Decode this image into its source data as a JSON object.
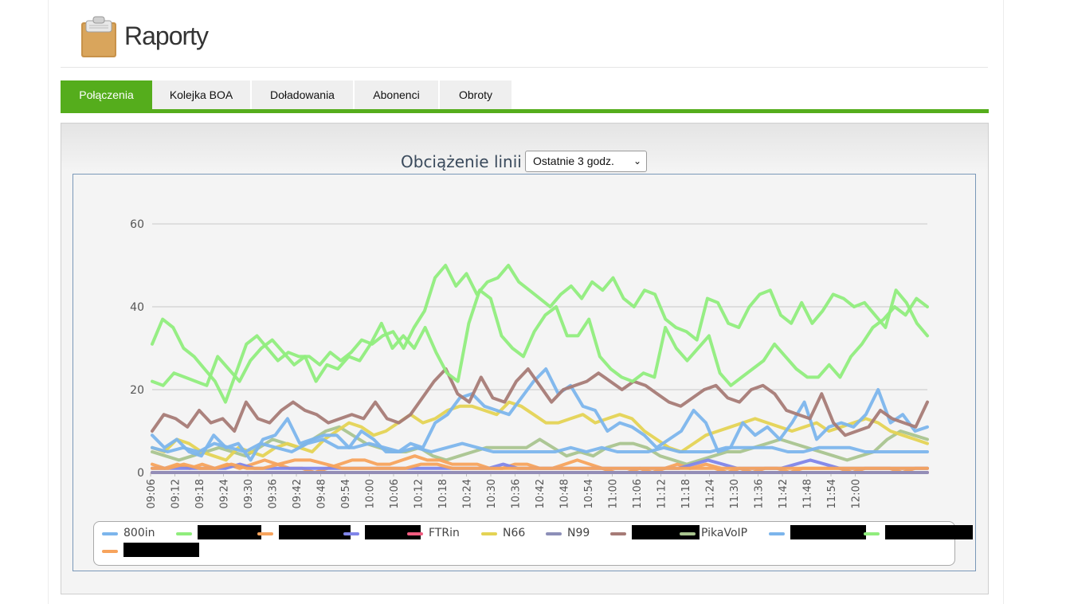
{
  "header": {
    "title": "Raporty",
    "icon": "clipboard-icon"
  },
  "tabs": [
    {
      "label": "Połączenia",
      "active": true
    },
    {
      "label": "Kolejka BOA",
      "active": false
    },
    {
      "label": "Doładowania",
      "active": false
    },
    {
      "label": "Abonenci",
      "active": false
    },
    {
      "label": "Obroty",
      "active": false
    }
  ],
  "chart_title": "Obciążenie linii",
  "range_select": {
    "value": "Ostatnie 3 godz."
  },
  "chart_data": {
    "type": "line",
    "title": "Obciążenie linii",
    "xlabel": "",
    "ylabel": "",
    "ylim": [
      0,
      60
    ],
    "yticks": [
      "0",
      "20",
      "40",
      "60"
    ],
    "grid": "horizontal",
    "legend_position": "bottom",
    "x_tick_labels": [
      "09:06",
      "09:12",
      "09:18",
      "09:24",
      "09:30",
      "09:36",
      "09:42",
      "09:48",
      "09:54",
      "10:00",
      "10:06",
      "10:12",
      "10:18",
      "10:24",
      "10:30",
      "10:36",
      "10:42",
      "10:48",
      "10:54",
      "11:00",
      "11:06",
      "11:12",
      "11:18",
      "11:24",
      "11:30",
      "11:36",
      "11:42",
      "11:48",
      "11:54",
      "12:00"
    ],
    "series": [
      {
        "name": "800in",
        "color": "#7cb5ec",
        "values": [
          9,
          6,
          8,
          5,
          4,
          9,
          6,
          7,
          3,
          8,
          9,
          13,
          7,
          8,
          9,
          9,
          6,
          10,
          8,
          5,
          5,
          7,
          6,
          12,
          14,
          18,
          19,
          16,
          15,
          14,
          18,
          22,
          25,
          19,
          21,
          16,
          15,
          10,
          12,
          11,
          9,
          6,
          8,
          10,
          15,
          12,
          5,
          6,
          12,
          9,
          11,
          8,
          12,
          17,
          8,
          11,
          12,
          11,
          14,
          20,
          12,
          14,
          10,
          11
        ]
      },
      {
        "name": "",
        "color": "#90ed7d",
        "values": [
          22,
          21,
          24,
          23,
          22,
          21,
          28,
          25,
          22,
          27,
          30,
          32,
          29,
          26,
          28,
          22,
          26,
          25,
          28,
          27,
          31,
          36,
          30,
          33,
          30,
          35,
          29,
          24,
          22,
          36,
          44,
          42,
          33,
          30,
          28,
          34,
          38,
          40,
          33,
          33,
          37,
          28,
          25,
          23,
          22,
          24,
          23,
          35,
          30,
          27,
          30,
          33,
          24,
          21,
          23,
          25,
          27,
          31,
          28,
          25,
          23,
          23,
          26,
          23,
          28,
          31,
          35,
          37,
          40,
          38,
          42,
          40
        ]
      },
      {
        "name": "",
        "color": "#f7a35c",
        "values": [
          2,
          1,
          2,
          1,
          2,
          1,
          2,
          1,
          2,
          3,
          2,
          1,
          1,
          0,
          1,
          2,
          3,
          3,
          2,
          2,
          3,
          4,
          3,
          3,
          2,
          2,
          2,
          1,
          1,
          2,
          2,
          1,
          1,
          2,
          3,
          2,
          1,
          0,
          0,
          1,
          0,
          1,
          2,
          1,
          1,
          1,
          0,
          1,
          0,
          1,
          1,
          0,
          1,
          1,
          1,
          1,
          0,
          1,
          1,
          1,
          0,
          1,
          1
        ]
      },
      {
        "name": "",
        "color": "#8085e9",
        "values": [
          1,
          1,
          1,
          1,
          1,
          1,
          2,
          1,
          1,
          1,
          1,
          1,
          1,
          1,
          1,
          1,
          1,
          1,
          1,
          1,
          1,
          1,
          1,
          1,
          2,
          1,
          1,
          1,
          1,
          1,
          1,
          1,
          1,
          1,
          1,
          1,
          1,
          2,
          3,
          2,
          1,
          1,
          1,
          1,
          2,
          3,
          2,
          1,
          1,
          1,
          1,
          1,
          1,
          1
        ]
      },
      {
        "name": "FTRin",
        "color": "#f15c80",
        "values": [
          0,
          0,
          0,
          0,
          0,
          0,
          0,
          0,
          0,
          0,
          0,
          0,
          0,
          0,
          0,
          0,
          0,
          0,
          0,
          0,
          0,
          0,
          0,
          0,
          0,
          0,
          0,
          0,
          0,
          0
        ]
      },
      {
        "name": "N66",
        "color": "#e4d354",
        "values": [
          6,
          5,
          8,
          7,
          5,
          4,
          3,
          6,
          5,
          4,
          6,
          7,
          6,
          5,
          8,
          10,
          12,
          11,
          9,
          10,
          12,
          14,
          12,
          13,
          15,
          16,
          16,
          15,
          14,
          17,
          16,
          14,
          12,
          12,
          13,
          14,
          12,
          13,
          14,
          13,
          10,
          8,
          6,
          5,
          7,
          9,
          10,
          11,
          12,
          13,
          12,
          11,
          10,
          11,
          12,
          10,
          11,
          12,
          13,
          12,
          10,
          9,
          8,
          7
        ]
      },
      {
        "name": "N99",
        "color": "#8d8fb8",
        "values": [
          0,
          0,
          0,
          0,
          0,
          0,
          0,
          0,
          0,
          0,
          0,
          0,
          0,
          0,
          0,
          0,
          0,
          0,
          0,
          0,
          0,
          0,
          0,
          0,
          0,
          0,
          0,
          0,
          0,
          0
        ]
      },
      {
        "name": "",
        "color": "#a67b76",
        "values": [
          10,
          14,
          13,
          11,
          15,
          12,
          13,
          10,
          17,
          13,
          12,
          15,
          17,
          15,
          14,
          12,
          13,
          14,
          13,
          17,
          13,
          12,
          14,
          18,
          22,
          25,
          19,
          17,
          23,
          18,
          17,
          22,
          25,
          21,
          17,
          20,
          21,
          22,
          24,
          22,
          20,
          22,
          21,
          19,
          17,
          16,
          18,
          20,
          21,
          18,
          17,
          20,
          21,
          19,
          15,
          14,
          13,
          19,
          12,
          9,
          10,
          11,
          15,
          13,
          12,
          11,
          17
        ]
      },
      {
        "name": "PikaVoIP",
        "color": "#a9c48f",
        "values": [
          5,
          4,
          3,
          4,
          5,
          6,
          5,
          4,
          6,
          8,
          7,
          6,
          8,
          10,
          11,
          9,
          7,
          6,
          5,
          5,
          6,
          4,
          3,
          4,
          5,
          6,
          6,
          6,
          6,
          8,
          6,
          4,
          5,
          4,
          6,
          7,
          7,
          6,
          4,
          3,
          2,
          3,
          4,
          5,
          5,
          6,
          7,
          8,
          7,
          6,
          5,
          4,
          3,
          4,
          5,
          8,
          10,
          9,
          8
        ]
      },
      {
        "name": "",
        "color": "#7cb5ec",
        "values": [
          6,
          5,
          6,
          5,
          7,
          6,
          5,
          7,
          6,
          5,
          7,
          8,
          6,
          6,
          7,
          6,
          5,
          6,
          5,
          6,
          7,
          6,
          5,
          5,
          5,
          5,
          5,
          6,
          5,
          6,
          5,
          5,
          5,
          6,
          5,
          5,
          5,
          6,
          6,
          6,
          6,
          5,
          5,
          6,
          6,
          6,
          5,
          5,
          5,
          5,
          5
        ]
      },
      {
        "name": "",
        "color": "#90ed7d",
        "values": [
          31,
          37,
          35,
          30,
          28,
          25,
          22,
          17,
          24,
          31,
          33,
          30,
          27,
          29,
          28,
          28,
          26,
          29,
          27,
          29,
          32,
          31,
          33,
          34,
          30,
          35,
          39,
          47,
          50,
          45,
          48,
          43,
          46,
          47,
          50,
          46,
          44,
          42,
          40,
          43,
          45,
          42,
          46,
          44,
          47,
          42,
          40,
          44,
          43,
          37,
          35,
          34,
          32,
          42,
          41,
          36,
          35,
          40,
          43,
          44,
          38,
          36,
          41,
          36,
          39,
          43,
          42,
          40,
          41,
          38,
          35,
          44,
          41,
          36,
          33
        ]
      },
      {
        "name": "",
        "color": "#f7a35c",
        "values": [
          1,
          1,
          2,
          1,
          1,
          2,
          1,
          1,
          2,
          3,
          3,
          2,
          1,
          1,
          1,
          1,
          1,
          2,
          2,
          1,
          1,
          1,
          1,
          1,
          1,
          1,
          1,
          1,
          1,
          1,
          1,
          1,
          1,
          1,
          1,
          2,
          1,
          1,
          1,
          1,
          1,
          1,
          1,
          1,
          1,
          1,
          1,
          1,
          1,
          1
        ]
      }
    ]
  },
  "legend": [
    {
      "label": "800in",
      "color": "#7cb5ec"
    },
    {
      "label": "",
      "color": "#90ed7d"
    },
    {
      "label": "",
      "color": "#f7a35c"
    },
    {
      "label": "",
      "color": "#8085e9"
    },
    {
      "label": "FTRin",
      "color": "#f15c80"
    },
    {
      "label": "N66",
      "color": "#e4d354"
    },
    {
      "label": "N99",
      "color": "#8d8fb8"
    },
    {
      "label": "",
      "color": "#a67b76"
    },
    {
      "label": "PikaVoIP",
      "color": "#a9c48f"
    },
    {
      "label": "",
      "color": "#7cb5ec"
    },
    {
      "label": "",
      "color": "#90ed7d"
    },
    {
      "label": "",
      "color": "#f7a35c"
    }
  ]
}
